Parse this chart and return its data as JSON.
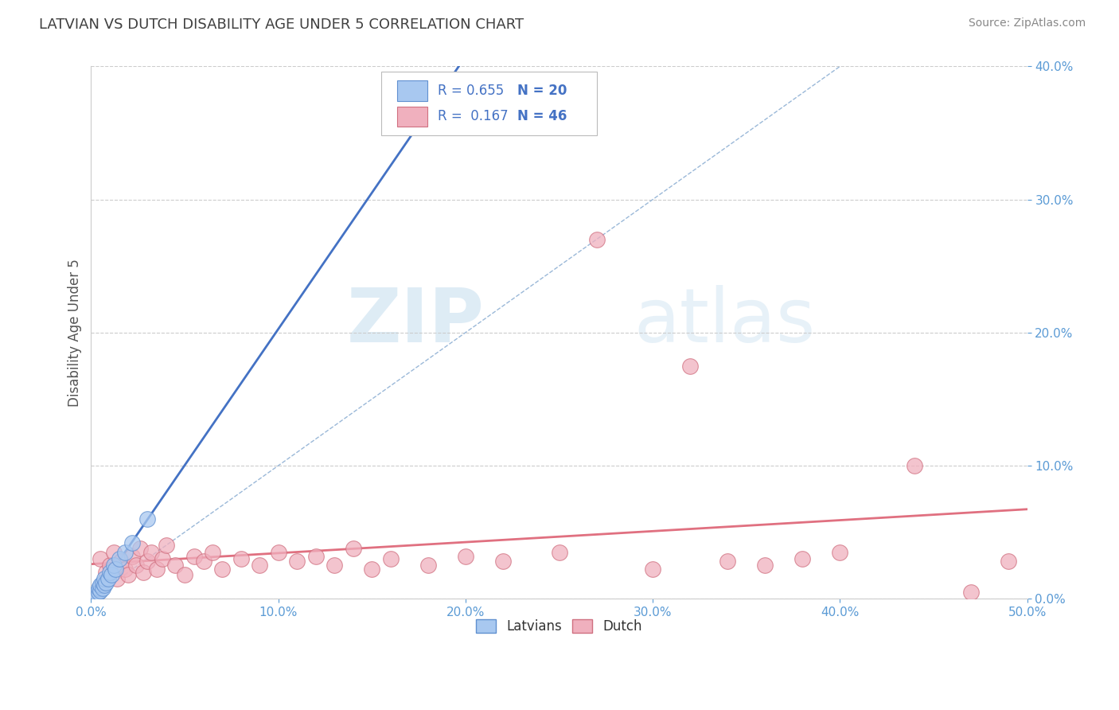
{
  "title": "LATVIAN VS DUTCH DISABILITY AGE UNDER 5 CORRELATION CHART",
  "source": "Source: ZipAtlas.com",
  "ylabel": "Disability Age Under 5",
  "xlim": [
    0.0,
    0.5
  ],
  "ylim": [
    0.0,
    0.4
  ],
  "xticks": [
    0.0,
    0.1,
    0.2,
    0.3,
    0.4,
    0.5
  ],
  "yticks": [
    0.0,
    0.1,
    0.2,
    0.3,
    0.4
  ],
  "latvian_R": 0.655,
  "latvian_N": 20,
  "dutch_R": 0.167,
  "dutch_N": 46,
  "latvian_color": "#a8c8f0",
  "latvian_edge": "#6090d0",
  "latvian_line_color": "#4472c4",
  "dutch_color": "#f0b0be",
  "dutch_edge": "#d07080",
  "dutch_line_color": "#e07080",
  "diagonal_color": "#9ab8d8",
  "watermark_zip": "ZIP",
  "watermark_atlas": "atlas",
  "background": "#ffffff",
  "title_color": "#404040",
  "tick_color": "#5b9bd5",
  "grid_color": "#cccccc",
  "latvian_x": [
    0.002,
    0.003,
    0.004,
    0.004,
    0.005,
    0.005,
    0.006,
    0.006,
    0.007,
    0.007,
    0.008,
    0.009,
    0.01,
    0.011,
    0.012,
    0.013,
    0.015,
    0.018,
    0.022,
    0.03
  ],
  "latvian_y": [
    0.003,
    0.004,
    0.005,
    0.008,
    0.006,
    0.01,
    0.008,
    0.012,
    0.01,
    0.015,
    0.012,
    0.015,
    0.02,
    0.018,
    0.025,
    0.022,
    0.03,
    0.035,
    0.042,
    0.06
  ],
  "dutch_x": [
    0.005,
    0.008,
    0.01,
    0.012,
    0.014,
    0.016,
    0.018,
    0.02,
    0.022,
    0.024,
    0.026,
    0.028,
    0.03,
    0.032,
    0.035,
    0.038,
    0.04,
    0.045,
    0.05,
    0.055,
    0.06,
    0.065,
    0.07,
    0.08,
    0.09,
    0.1,
    0.11,
    0.12,
    0.13,
    0.14,
    0.15,
    0.16,
    0.18,
    0.2,
    0.22,
    0.25,
    0.27,
    0.3,
    0.32,
    0.34,
    0.36,
    0.38,
    0.4,
    0.44,
    0.47,
    0.49
  ],
  "dutch_y": [
    0.03,
    0.02,
    0.025,
    0.035,
    0.015,
    0.028,
    0.022,
    0.018,
    0.032,
    0.025,
    0.038,
    0.02,
    0.028,
    0.035,
    0.022,
    0.03,
    0.04,
    0.025,
    0.018,
    0.032,
    0.028,
    0.035,
    0.022,
    0.03,
    0.025,
    0.035,
    0.028,
    0.032,
    0.025,
    0.038,
    0.022,
    0.03,
    0.025,
    0.032,
    0.028,
    0.035,
    0.27,
    0.022,
    0.175,
    0.028,
    0.025,
    0.03,
    0.035,
    0.1,
    0.005,
    0.028
  ]
}
